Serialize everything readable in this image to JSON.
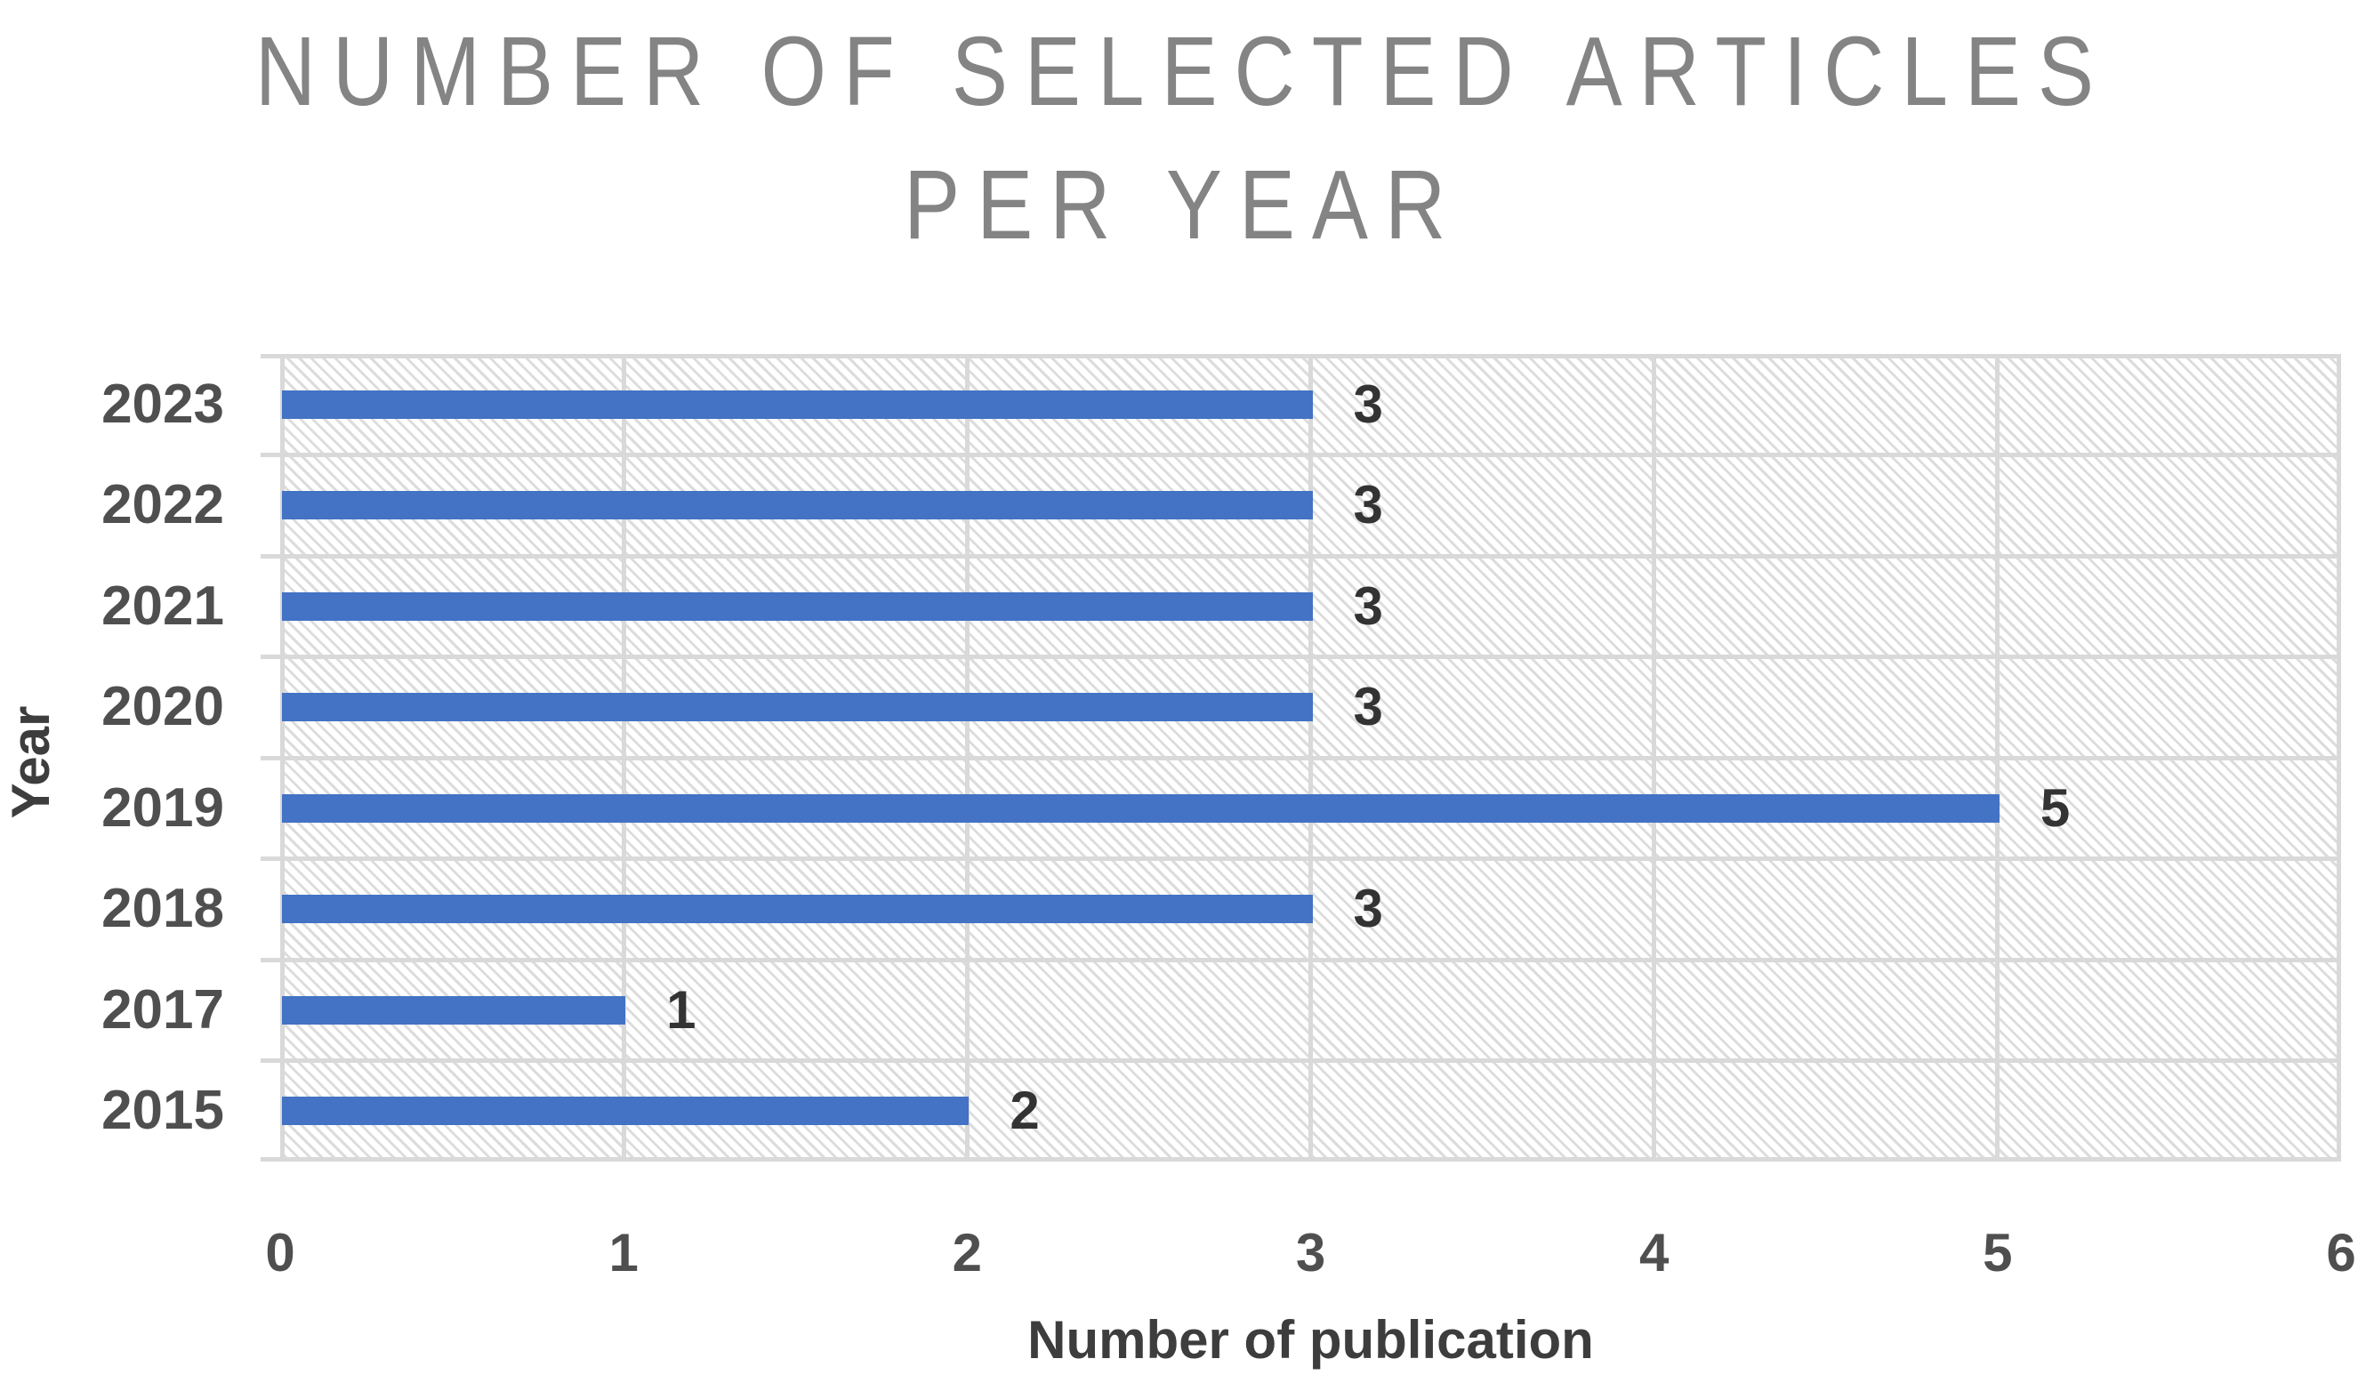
{
  "title": {
    "line1": "NUMBER OF SELECTED ARTICLES",
    "line2": "PER YEAR"
  },
  "chart_data": {
    "type": "bar",
    "orientation": "horizontal",
    "title": "NUMBER OF SELECTED ARTICLES PER YEAR",
    "categories": [
      "2023",
      "2022",
      "2021",
      "2020",
      "2019",
      "2018",
      "2017",
      "2015"
    ],
    "values": [
      3,
      3,
      3,
      3,
      5,
      3,
      1,
      2
    ],
    "data_labels": [
      "3",
      "3",
      "3",
      "3",
      "5",
      "3",
      "1",
      "2"
    ],
    "xlabel": "Number of publication",
    "ylabel": "Year",
    "xlim": [
      0,
      6
    ],
    "xticks": [
      0,
      1,
      2,
      3,
      4,
      5,
      6
    ],
    "grid": true,
    "legend": false,
    "bar_color": "#4472C4",
    "gridline_color": "#D9D9D9",
    "plot_background_pattern": "light-downward-diagonal-hatch"
  }
}
